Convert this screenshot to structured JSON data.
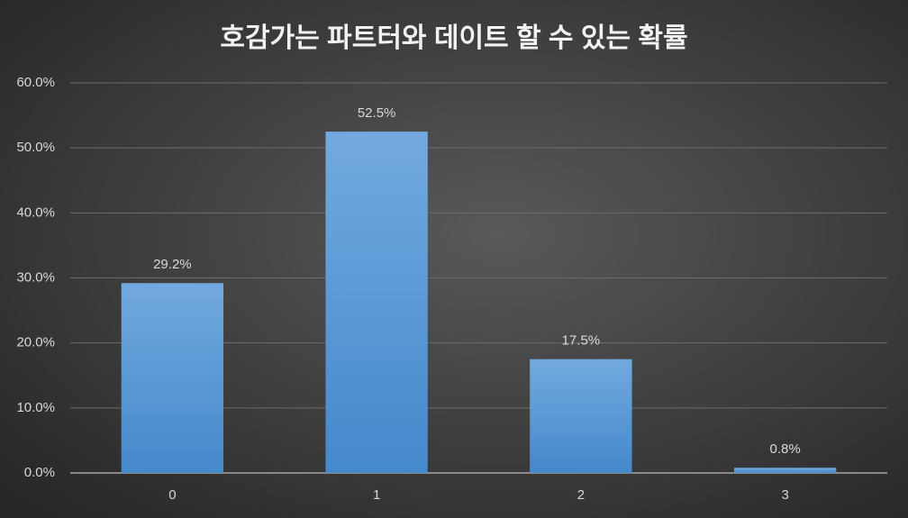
{
  "chart_data": {
    "type": "bar",
    "title": "호감가는 파트터와 데이트 할 수 있는 확률",
    "categories": [
      "0",
      "1",
      "2",
      "3"
    ],
    "values": [
      29.2,
      52.5,
      17.5,
      0.8
    ],
    "value_labels": [
      "29.2%",
      "52.5%",
      "17.5%",
      "0.8%"
    ],
    "color": "#5b9bd5",
    "ylim": [
      0,
      60
    ],
    "yticks": [
      {
        "value": 0,
        "label": "0.0%"
      },
      {
        "value": 10,
        "label": "10.0%"
      },
      {
        "value": 20,
        "label": "20.0%"
      },
      {
        "value": 30,
        "label": "30.0%"
      },
      {
        "value": 40,
        "label": "40.0%"
      },
      {
        "value": 50,
        "label": "50.0%"
      },
      {
        "value": 60,
        "label": "60.0%"
      }
    ],
    "grid": true
  }
}
